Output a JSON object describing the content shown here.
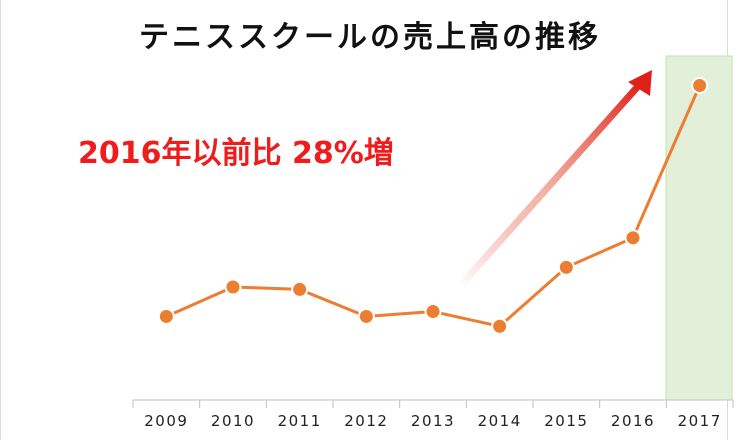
{
  "title": "テニススクールの売上高の推移",
  "annotation": "2016年以前比 28%増",
  "colors": {
    "line": "#ed7d31",
    "marker_stroke": "#ffffff",
    "highlight": "#e2efd9",
    "highlight_border": "#c5e0b4",
    "arrow": "#e0201a",
    "annotation": "#ee1c1c"
  },
  "chart_data": {
    "type": "line",
    "title": "テニススクールの売上高の推移",
    "categories": [
      "2009",
      "2010",
      "2011",
      "2012",
      "2013",
      "2014",
      "2015",
      "2016",
      "2017"
    ],
    "values": [
      34,
      46,
      45,
      34,
      36,
      30,
      54,
      66,
      128
    ],
    "ylim": [
      0,
      140
    ],
    "y_axis_visible": false,
    "grid": false,
    "legend": "none",
    "highlighted_category": "2017",
    "annotation": "2016年以前比 28%増",
    "trend_arrow": "rising toward 2017"
  }
}
